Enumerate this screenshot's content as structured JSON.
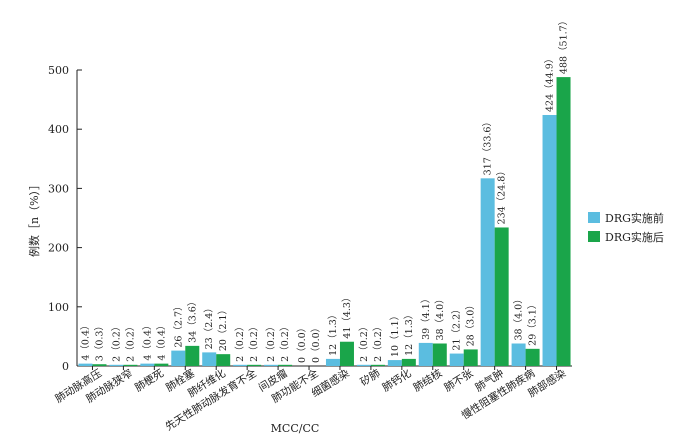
{
  "chart_data": {
    "type": "bar",
    "xlabel": "MCC/CC",
    "ylabel": "例数［n（%）］",
    "ylim": [
      0,
      500
    ],
    "yticks": [
      0,
      100,
      200,
      300,
      400,
      500
    ],
    "grid": false,
    "legend_position": "right",
    "categories": [
      "肺动脉高压",
      "肺动脉狭窄",
      "肺梗死",
      "肺栓塞",
      "肺纤维化",
      "先天性肺动脉发育不全",
      "间皮瘤",
      "肺功能不全",
      "细菌感染",
      "矽肺",
      "肺钙化",
      "肺结核",
      "肺不张",
      "肺气肿",
      "慢性阻塞性肺疾病",
      "肺部感染"
    ],
    "series": [
      {
        "name": "DRG实施前",
        "color": "#5bbde0",
        "values": [
          4,
          2,
          4,
          26,
          23,
          2,
          2,
          0,
          12,
          2,
          10,
          39,
          21,
          317,
          38,
          424
        ],
        "labels": [
          "4（0.4）",
          "2（0.2）",
          "4（0.4）",
          "26（2.7）",
          "23（2.4）",
          "2（0.2）",
          "2（0.2）",
          "0（0.0）",
          "12（1.3）",
          "2（0.2）",
          "10（1.1）",
          "39（4.1）",
          "21（2.2）",
          "317（33.6）",
          "38（4.0）",
          "424（44.9）"
        ]
      },
      {
        "name": "DRG实施后",
        "color": "#1aa54a",
        "values": [
          3,
          2,
          4,
          34,
          20,
          2,
          2,
          0,
          41,
          2,
          12,
          38,
          28,
          234,
          29,
          488
        ],
        "labels": [
          "3（0.3）",
          "2（0.2）",
          "4（0.4）",
          "34（3.6）",
          "20（2.1）",
          "2（0.2）",
          "2（0.2）",
          "0（0.0）",
          "41（4.3）",
          "2（0.2）",
          "12（1.3）",
          "38（4.0）",
          "28（3.0）",
          "234（24.8）",
          "29（3.1）",
          "488（51.7）"
        ]
      }
    ]
  }
}
